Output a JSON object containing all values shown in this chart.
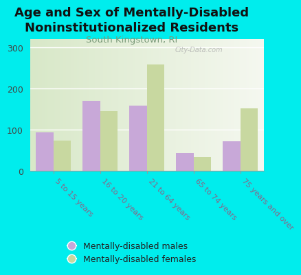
{
  "title": "Age and Sex of Mentally-Disabled\nNoninstitutionalized Residents",
  "subtitle": "South Kingstown, RI",
  "categories": [
    "5 to 15 years",
    "16 to 20 years",
    "21 to 64 years",
    "65 to 74 years",
    "75 years and over"
  ],
  "males": [
    93,
    170,
    158,
    44,
    72
  ],
  "females": [
    74,
    145,
    258,
    33,
    152
  ],
  "male_color": "#c8a8d8",
  "female_color": "#c8d8a0",
  "background_color": "#00eded",
  "plot_bg_color": "#e8f0d8",
  "ylim": [
    0,
    320
  ],
  "yticks": [
    0,
    100,
    200,
    300
  ],
  "bar_width": 0.38,
  "title_fontsize": 13,
  "subtitle_fontsize": 9.5,
  "legend_labels": [
    "Mentally-disabled males",
    "Mentally-disabled females"
  ],
  "watermark": "City-Data.com",
  "tick_label_color": "#886688",
  "subtitle_color": "#7a9a7a"
}
